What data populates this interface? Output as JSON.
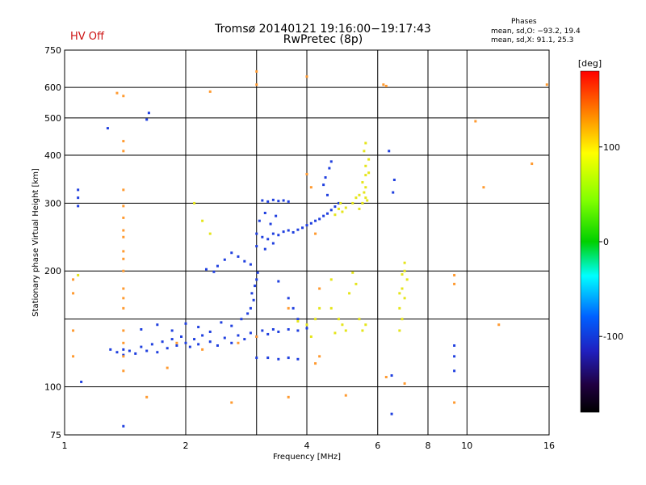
{
  "header": {
    "title_line1": "Tromsø 20140121 19:16:00−19:17:43",
    "title_line2": "RwPretec (8p)",
    "hv_status": "HV Off",
    "phases_heading": "Phases",
    "phases_o": "mean, sd,O: −93.2, 19.4",
    "phases_x": "mean, sd,X:  91.1, 25.3"
  },
  "colors": {
    "hv_status": "#cc1111",
    "grid": "#000000",
    "cluster_low_O": "#1f3fdf",
    "cluster_high_X": "#e5e51a"
  },
  "chart_data": {
    "type": "scatter",
    "title": "Tromsø 20140121 19:16:00−19:17:43",
    "subtitle": "RwPretec (8p)",
    "xlabel": "Frequency [MHz]",
    "ylabel": "Stationary phase Virtual Height [km]",
    "x_scale": "log",
    "y_scale": "log",
    "xlim": [
      1,
      16
    ],
    "ylim": [
      75,
      750
    ],
    "x_ticks": [
      1,
      2,
      4,
      6,
      8,
      10,
      16
    ],
    "y_ticks": [
      75,
      100,
      200,
      300,
      400,
      500,
      600,
      750
    ],
    "x_gridlines": [
      1,
      2,
      3,
      4,
      6,
      8,
      10,
      16
    ],
    "y_gridlines": [
      75,
      100,
      150,
      200,
      300,
      400,
      500,
      600,
      750
    ],
    "colorbar": {
      "label": "[deg]",
      "ticks": [
        100,
        0,
        -100
      ],
      "range": [
        -180,
        180
      ]
    },
    "series": [
      {
        "points": [
          [
            1.3,
            125
          ],
          [
            1.35,
            123
          ],
          [
            1.4,
            121
          ],
          [
            1.45,
            124
          ],
          [
            1.5,
            122
          ],
          [
            1.55,
            127
          ],
          [
            1.6,
            124
          ],
          [
            1.65,
            129
          ],
          [
            1.7,
            123
          ],
          [
            1.75,
            131
          ],
          [
            1.8,
            126
          ],
          [
            1.85,
            133
          ],
          [
            1.9,
            128
          ],
          [
            1.95,
            135
          ],
          [
            2.0,
            130
          ],
          [
            2.05,
            127
          ],
          [
            2.1,
            133
          ],
          [
            2.15,
            129
          ],
          [
            2.2,
            136
          ],
          [
            2.3,
            131
          ],
          [
            2.4,
            128
          ],
          [
            2.5,
            134
          ],
          [
            2.6,
            130
          ],
          [
            2.7,
            136
          ],
          [
            2.8,
            133
          ],
          [
            2.9,
            138
          ],
          [
            3.0,
            135
          ],
          [
            3.1,
            140
          ],
          [
            3.2,
            137
          ],
          [
            3.3,
            141
          ],
          [
            3.4,
            139
          ],
          [
            3.6,
            141
          ],
          [
            3.8,
            140
          ],
          [
            4.0,
            142
          ],
          [
            1.55,
            141
          ],
          [
            1.7,
            145
          ],
          [
            1.85,
            140
          ],
          [
            2.0,
            146
          ],
          [
            2.15,
            143
          ],
          [
            2.3,
            139
          ],
          [
            2.45,
            147
          ],
          [
            2.6,
            144
          ],
          [
            2.75,
            150
          ],
          [
            2.85,
            155
          ],
          [
            2.9,
            160
          ],
          [
            2.95,
            168
          ],
          [
            2.92,
            175
          ],
          [
            2.97,
            183
          ],
          [
            3.0,
            190
          ],
          [
            3.02,
            198
          ],
          [
            2.7,
            218
          ],
          [
            2.8,
            212
          ],
          [
            2.9,
            208
          ],
          [
            2.6,
            223
          ],
          [
            2.5,
            214
          ],
          [
            2.4,
            206
          ],
          [
            2.35,
            199
          ],
          [
            2.25,
            202
          ],
          [
            3.0,
            250
          ],
          [
            3.1,
            245
          ],
          [
            3.2,
            242
          ],
          [
            3.3,
            250
          ],
          [
            3.4,
            248
          ],
          [
            3.5,
            253
          ],
          [
            3.6,
            255
          ],
          [
            3.7,
            252
          ],
          [
            3.8,
            256
          ],
          [
            3.9,
            259
          ],
          [
            4.0,
            263
          ],
          [
            4.1,
            266
          ],
          [
            4.2,
            270
          ],
          [
            4.3,
            273
          ],
          [
            4.4,
            278
          ],
          [
            4.5,
            282
          ],
          [
            4.6,
            288
          ],
          [
            4.7,
            294
          ],
          [
            4.8,
            300
          ],
          [
            4.5,
            315
          ],
          [
            4.4,
            335
          ],
          [
            4.45,
            350
          ],
          [
            4.55,
            370
          ],
          [
            4.6,
            385
          ],
          [
            3.1,
            305
          ],
          [
            3.2,
            303
          ],
          [
            3.3,
            306
          ],
          [
            3.4,
            304
          ],
          [
            3.5,
            305
          ],
          [
            3.6,
            303
          ],
          [
            3.0,
            232
          ],
          [
            3.15,
            228
          ],
          [
            3.3,
            236
          ],
          [
            3.05,
            270
          ],
          [
            3.15,
            283
          ],
          [
            3.25,
            265
          ],
          [
            3.35,
            278
          ],
          [
            3.0,
            119
          ],
          [
            3.2,
            119
          ],
          [
            3.4,
            118
          ],
          [
            3.6,
            119
          ],
          [
            3.8,
            118
          ],
          [
            3.4,
            188
          ],
          [
            3.6,
            170
          ],
          [
            3.7,
            160
          ],
          [
            3.8,
            150
          ],
          [
            1.08,
            295
          ],
          [
            1.08,
            310
          ],
          [
            1.08,
            325
          ],
          [
            1.1,
            103
          ],
          [
            1.4,
            125
          ],
          [
            1.28,
            470
          ],
          [
            1.6,
            495
          ],
          [
            1.62,
            515
          ],
          [
            6.5,
            85
          ],
          [
            6.5,
            107
          ],
          [
            9.3,
            110
          ],
          [
            9.3,
            120
          ],
          [
            9.3,
            128
          ],
          [
            6.55,
            320
          ],
          [
            6.6,
            345
          ],
          [
            6.4,
            410
          ],
          [
            1.4,
            79
          ]
        ]
      },
      {
        "points": [
          [
            5.4,
            290
          ],
          [
            5.5,
            300
          ],
          [
            5.6,
            310
          ],
          [
            5.55,
            320
          ],
          [
            5.6,
            330
          ],
          [
            5.5,
            340
          ],
          [
            5.6,
            355
          ],
          [
            5.7,
            360
          ],
          [
            5.6,
            375
          ],
          [
            5.7,
            390
          ],
          [
            5.55,
            410
          ],
          [
            5.6,
            430
          ],
          [
            5.5,
            300
          ],
          [
            5.65,
            305
          ],
          [
            5.4,
            315
          ],
          [
            4.8,
            290
          ],
          [
            4.9,
            285
          ],
          [
            5.0,
            292
          ],
          [
            4.7,
            280
          ],
          [
            4.85,
            300
          ],
          [
            5.2,
            300
          ],
          [
            5.3,
            310
          ],
          [
            4.8,
            150
          ],
          [
            4.9,
            145
          ],
          [
            5.0,
            140
          ],
          [
            4.7,
            138
          ],
          [
            4.6,
            160
          ],
          [
            5.5,
            140
          ],
          [
            5.6,
            145
          ],
          [
            5.4,
            150
          ],
          [
            7.0,
            200
          ],
          [
            7.1,
            190
          ],
          [
            6.9,
            180
          ],
          [
            7.0,
            170
          ],
          [
            6.8,
            160
          ],
          [
            6.9,
            150
          ],
          [
            6.8,
            140
          ],
          [
            7.0,
            210
          ],
          [
            6.9,
            196
          ],
          [
            6.8,
            175
          ],
          [
            4.0,
            145
          ],
          [
            4.2,
            150
          ],
          [
            4.3,
            160
          ],
          [
            3.8,
            148
          ],
          [
            4.1,
            135
          ],
          [
            5.2,
            198
          ],
          [
            5.3,
            185
          ],
          [
            5.1,
            175
          ],
          [
            4.6,
            190
          ],
          [
            1.08,
            195
          ],
          [
            2.1,
            300
          ],
          [
            2.2,
            270
          ],
          [
            2.3,
            250
          ]
        ]
      },
      {
        "points": [
          [
            3.0,
            660
          ],
          [
            3.0,
            610
          ],
          [
            4.0,
            640
          ],
          [
            2.3,
            585
          ],
          [
            1.35,
            580
          ],
          [
            1.4,
            570
          ],
          [
            1.4,
            435
          ],
          [
            1.4,
            410
          ],
          [
            1.4,
            325
          ],
          [
            1.4,
            295
          ],
          [
            1.4,
            275
          ],
          [
            1.4,
            255
          ],
          [
            1.4,
            245
          ],
          [
            1.4,
            225
          ],
          [
            1.4,
            215
          ],
          [
            1.4,
            200
          ],
          [
            1.4,
            180
          ],
          [
            1.4,
            170
          ],
          [
            1.4,
            160
          ],
          [
            1.4,
            140
          ],
          [
            1.4,
            130
          ],
          [
            1.4,
            120
          ],
          [
            1.4,
            110
          ],
          [
            1.05,
            175
          ],
          [
            1.05,
            190
          ],
          [
            1.05,
            140
          ],
          [
            1.05,
            120
          ],
          [
            1.6,
            94
          ],
          [
            2.6,
            91
          ],
          [
            3.6,
            94
          ],
          [
            5.0,
            95
          ],
          [
            7.0,
            102
          ],
          [
            9.3,
            91
          ],
          [
            10.5,
            490
          ],
          [
            11.0,
            330
          ],
          [
            14.5,
            380
          ],
          [
            15.8,
            610
          ],
          [
            6.2,
            610
          ],
          [
            6.3,
            605
          ],
          [
            4.0,
            357
          ],
          [
            4.1,
            330
          ],
          [
            4.2,
            250
          ],
          [
            4.3,
            180
          ],
          [
            4.3,
            120
          ],
          [
            4.2,
            115
          ],
          [
            3.6,
            160
          ],
          [
            3.0,
            135
          ],
          [
            2.7,
            130
          ],
          [
            2.2,
            125
          ],
          [
            1.9,
            130
          ],
          [
            1.8,
            112
          ],
          [
            6.3,
            106
          ],
          [
            12.0,
            145
          ],
          [
            9.3,
            195
          ],
          [
            9.3,
            185
          ]
        ]
      }
    ]
  }
}
